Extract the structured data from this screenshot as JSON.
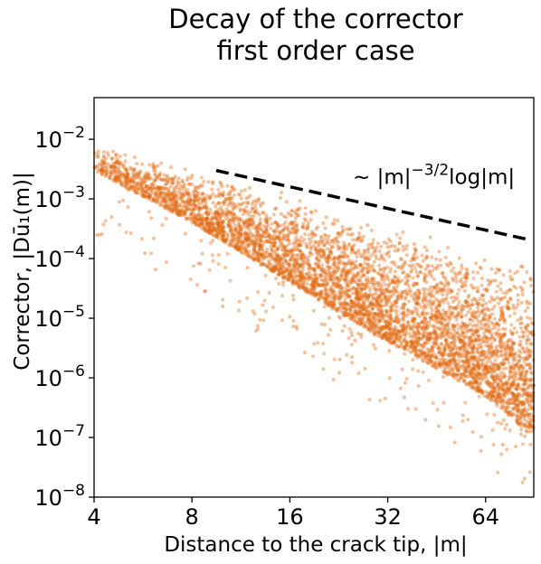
{
  "chart_data": {
    "type": "scatter",
    "title_line1": "Decay of the corrector",
    "title_line2": "first order case",
    "xlabel": "Distance to the crack tip, |m|",
    "ylabel_prefix": "Corrector, ",
    "ylabel_math": "|Dū₁(m)|",
    "x_scale": "log2",
    "y_scale": "log10",
    "xlim": [
      4,
      90
    ],
    "ylim": [
      1e-08,
      0.05
    ],
    "x_ticks": [
      4,
      8,
      16,
      32,
      64
    ],
    "x_tick_labels": [
      "4",
      "8",
      "16",
      "32",
      "64"
    ],
    "y_ticks": [
      1e-08,
      1e-07,
      1e-06,
      1e-05,
      0.0001,
      0.001,
      0.01
    ],
    "y_tick_base": "10",
    "y_tick_exponents": [
      "−8",
      "−7",
      "−6",
      "−5",
      "−4",
      "−3",
      "−2"
    ],
    "grid": false,
    "marker_color": "#e06c14",
    "marker_alpha": 0.4,
    "series": [
      {
        "description_envelope": "upper envelope ~ |m|^-1.5 log|m|",
        "upper_envelope": [
          [
            4,
            0.008
          ],
          [
            8,
            0.0033
          ],
          [
            16,
            0.0012
          ],
          [
            32,
            0.0004
          ],
          [
            64,
            0.00014
          ],
          [
            90,
            0.0001
          ]
        ],
        "lower_bulk": [
          [
            4,
            0.003
          ],
          [
            8,
            0.0004
          ],
          [
            16,
            4e-05
          ],
          [
            32,
            4e-06
          ],
          [
            64,
            5e-07
          ],
          [
            90,
            1e-07
          ]
        ]
      }
    ],
    "reference_line": {
      "style": "dashed",
      "color": "#000000",
      "points": [
        [
          9.5,
          0.003
        ],
        [
          86,
          0.00021
        ]
      ],
      "label_prefix": "~ |m|",
      "label_exponent": "−3/2",
      "label_suffix": "log|m|",
      "label_position": [
        25,
        0.0018
      ]
    }
  }
}
